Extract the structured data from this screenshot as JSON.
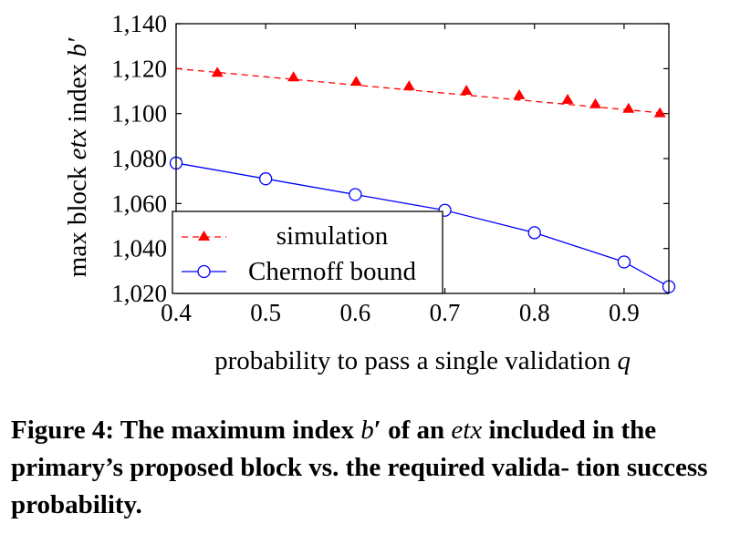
{
  "chart_data": {
    "type": "line",
    "title": "",
    "xlabel": "probability to pass a single validation",
    "xlabel_symbol": "q",
    "ylabel": "max block etx index b′",
    "ylabel_parts": [
      "max block ",
      "etx",
      " index ",
      "b′"
    ],
    "xlim": [
      0.4,
      0.95
    ],
    "ylim": [
      1020,
      1140
    ],
    "x_ticks": [
      0.4,
      0.5,
      0.6,
      0.7,
      0.8,
      0.9
    ],
    "x_tick_labels": [
      "0.4",
      "0.5",
      "0.6",
      "0.7",
      "0.8",
      "0.9"
    ],
    "y_ticks": [
      1020,
      1040,
      1060,
      1080,
      1100,
      1120,
      1140
    ],
    "y_tick_labels": [
      "1,020",
      "1,040",
      "1,060",
      "1,080",
      "1,100",
      "1,120",
      "1,140"
    ],
    "legend_position": "bottom-left",
    "series": [
      {
        "name": "simulation",
        "color": "#ff0000",
        "style": "dashed",
        "marker": "triangle",
        "x": [
          0.4,
          0.95
        ],
        "y": [
          1120,
          1100
        ],
        "marker_x": [
          0.446,
          0.531,
          0.601,
          0.66,
          0.724,
          0.783,
          0.837,
          0.868,
          0.905,
          0.94
        ],
        "marker_y": [
          1118,
          1116,
          1114,
          1112,
          1110,
          1108,
          1106,
          1104,
          1102,
          1100
        ]
      },
      {
        "name": "Chernoff bound",
        "color": "#0000ff",
        "style": "solid",
        "marker": "circle",
        "x": [
          0.4,
          0.5,
          0.6,
          0.7,
          0.8,
          0.9,
          0.95
        ],
        "y": [
          1078,
          1071,
          1064,
          1057,
          1047,
          1034,
          1023
        ],
        "marker_x": [
          0.4,
          0.5,
          0.6,
          0.7,
          0.8,
          0.9,
          0.95
        ],
        "marker_y": [
          1078,
          1071,
          1064,
          1057,
          1047,
          1034,
          1023
        ]
      }
    ]
  },
  "caption": {
    "label": "Figure 4:",
    "part1": "The maximum index",
    "b_sym": "b",
    "prime": "′",
    "part2": "of an",
    "etx": "etx",
    "part3": "included in the primary’s proposed block vs. the required valida-",
    "part4": "tion success probability."
  }
}
